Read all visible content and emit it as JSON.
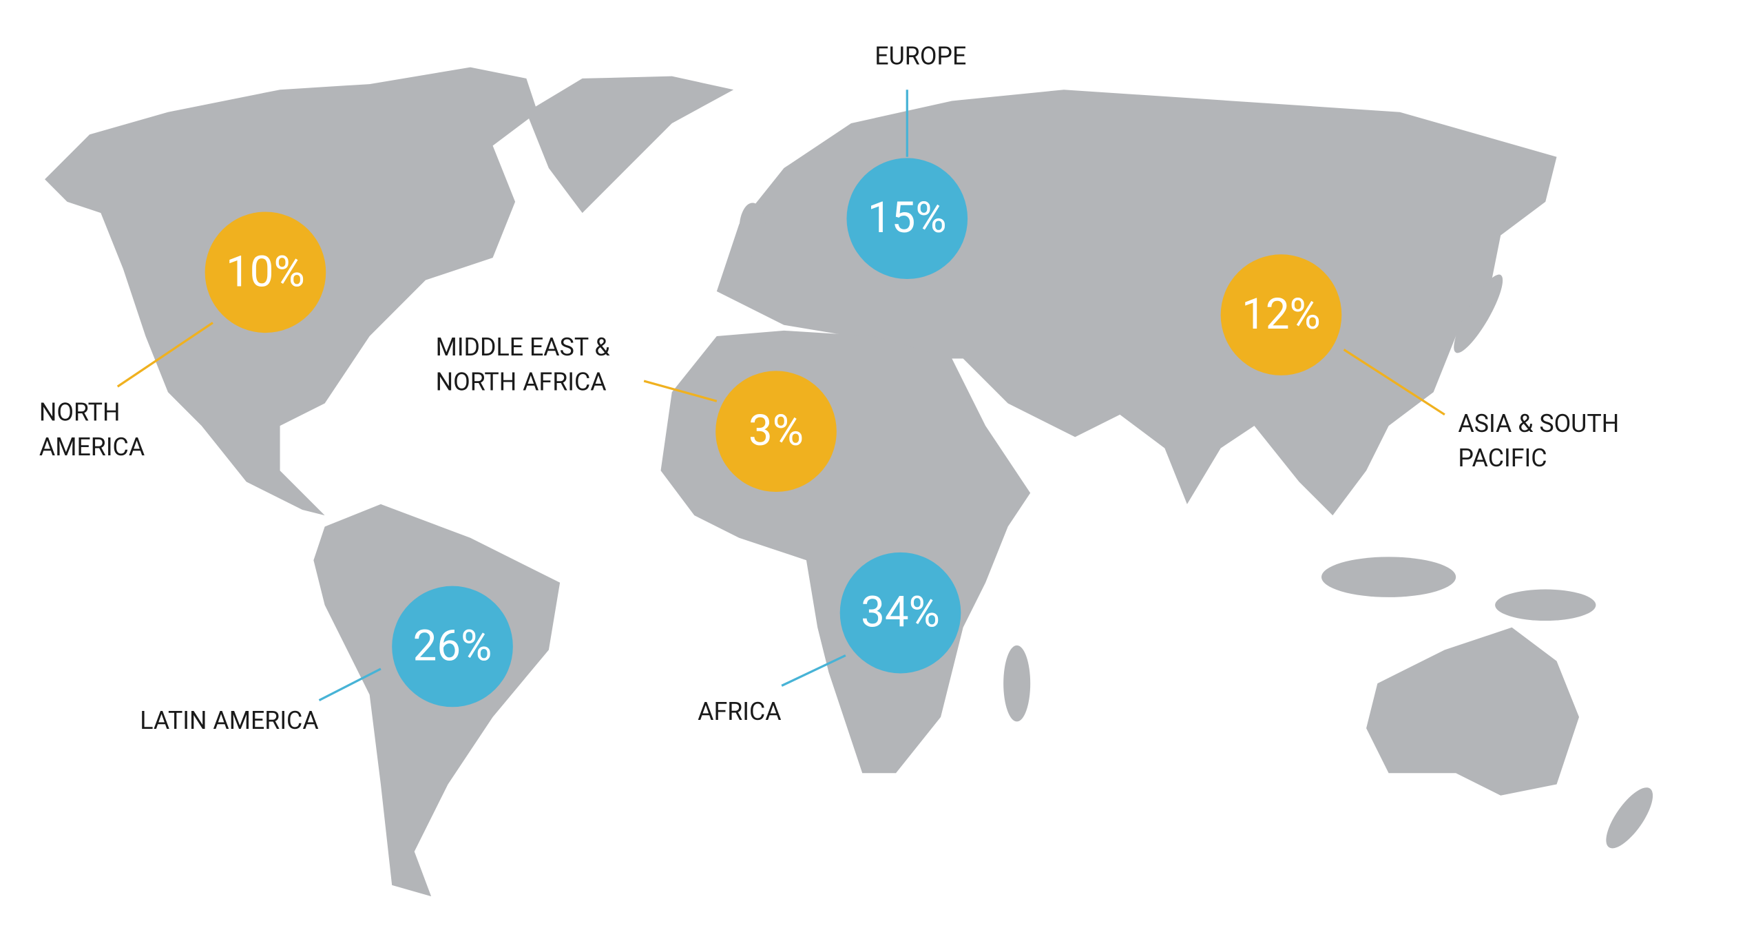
{
  "map": {
    "regions": [
      {
        "name": [
          "NORTH",
          "AMERICA"
        ],
        "value": 10,
        "value_label": "10%",
        "color": "#f0b11f"
      },
      {
        "name": [
          "EUROPE"
        ],
        "value": 15,
        "value_label": "15%",
        "color": "#47b3d6"
      },
      {
        "name": [
          "MIDDLE EAST &",
          "NORTH AFRICA"
        ],
        "value": 3,
        "value_label": "3%",
        "color": "#f0b11f"
      },
      {
        "name": [
          "ASIA & SOUTH",
          "PACIFIC"
        ],
        "value": 12,
        "value_label": "12%",
        "color": "#f0b11f"
      },
      {
        "name": [
          "LATIN AMERICA"
        ],
        "value": 26,
        "value_label": "26%",
        "color": "#47b3d6"
      },
      {
        "name": [
          "AFRICA"
        ],
        "value": 34,
        "value_label": "34%",
        "color": "#47b3d6"
      }
    ]
  }
}
